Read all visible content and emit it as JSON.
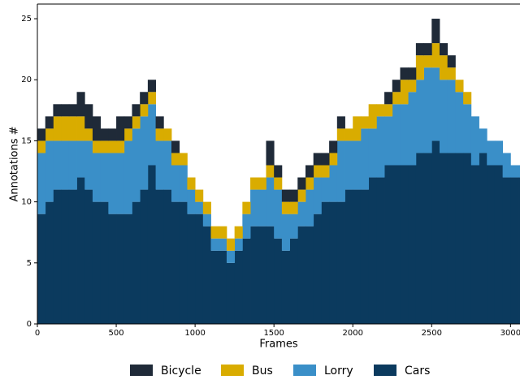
{
  "chart_data": {
    "type": "stacked-step-area",
    "xlabel": "Frames",
    "ylabel": "Annotations #",
    "x": [
      0,
      50,
      100,
      150,
      200,
      250,
      300,
      350,
      400,
      450,
      500,
      550,
      600,
      650,
      700,
      750,
      800,
      850,
      900,
      950,
      1000,
      1050,
      1100,
      1150,
      1200,
      1250,
      1300,
      1350,
      1400,
      1450,
      1500,
      1550,
      1600,
      1650,
      1700,
      1750,
      1800,
      1850,
      1900,
      1950,
      2000,
      2050,
      2100,
      2150,
      2200,
      2250,
      2300,
      2350,
      2400,
      2450,
      2500,
      2550,
      2600,
      2650,
      2700,
      2750,
      2800,
      2850,
      2900,
      2950,
      3000,
      3050
    ],
    "series": [
      {
        "name": "Cars",
        "color": "#0b3a5e",
        "values": [
          9,
          10,
          11,
          11,
          11,
          12,
          11,
          10,
          10,
          9,
          9,
          9,
          10,
          11,
          13,
          11,
          11,
          10,
          10,
          9,
          9,
          8,
          6,
          6,
          5,
          6,
          7,
          8,
          8,
          8,
          7,
          6,
          7,
          8,
          8,
          9,
          10,
          10,
          10,
          11,
          11,
          11,
          12,
          12,
          13,
          13,
          13,
          13,
          14,
          14,
          15,
          14,
          14,
          14,
          14,
          13,
          14,
          13,
          13,
          12,
          12,
          12
        ]
      },
      {
        "name": "Lorry",
        "color": "#3a8fc8",
        "values": [
          5,
          5,
          4,
          4,
          4,
          3,
          4,
          4,
          4,
          5,
          5,
          6,
          6,
          6,
          5,
          4,
          4,
          3,
          3,
          2,
          1,
          1,
          1,
          1,
          1,
          1,
          2,
          3,
          3,
          4,
          4,
          3,
          2,
          2,
          3,
          3,
          2,
          3,
          5,
          4,
          4,
          5,
          4,
          5,
          4,
          5,
          5,
          6,
          6,
          7,
          6,
          6,
          6,
          5,
          4,
          4,
          2,
          2,
          2,
          2,
          1,
          1
        ]
      },
      {
        "name": "Bus",
        "color": "#d9ac00",
        "values": [
          1,
          1,
          2,
          2,
          2,
          2,
          1,
          1,
          1,
          1,
          1,
          1,
          1,
          1,
          1,
          1,
          1,
          1,
          1,
          1,
          1,
          1,
          1,
          1,
          1,
          1,
          1,
          1,
          1,
          1,
          1,
          1,
          1,
          1,
          1,
          1,
          1,
          1,
          1,
          1,
          2,
          1,
          2,
          1,
          1,
          1,
          2,
          1,
          2,
          1,
          2,
          2,
          1,
          1,
          1,
          0,
          0,
          0,
          0,
          0,
          0,
          0
        ]
      },
      {
        "name": "Bicycle",
        "color": "#1f2a38",
        "values": [
          1,
          1,
          1,
          1,
          1,
          2,
          2,
          2,
          1,
          1,
          2,
          1,
          1,
          1,
          1,
          1,
          0,
          1,
          0,
          0,
          0,
          0,
          0,
          0,
          0,
          0,
          0,
          0,
          0,
          2,
          1,
          1,
          1,
          1,
          1,
          1,
          1,
          1,
          1,
          0,
          0,
          0,
          0,
          0,
          1,
          1,
          1,
          1,
          1,
          1,
          2,
          1,
          1,
          0,
          0,
          0,
          0,
          0,
          0,
          0,
          0,
          0
        ]
      }
    ],
    "legend_order": [
      3,
      2,
      1,
      0
    ],
    "xlim": [
      0,
      3060
    ],
    "ylim": [
      0,
      26.2
    ],
    "xticks": [
      0,
      500,
      1000,
      1500,
      2000,
      2500,
      3000
    ],
    "yticks": [
      0,
      5,
      10,
      15,
      20,
      25
    ]
  }
}
